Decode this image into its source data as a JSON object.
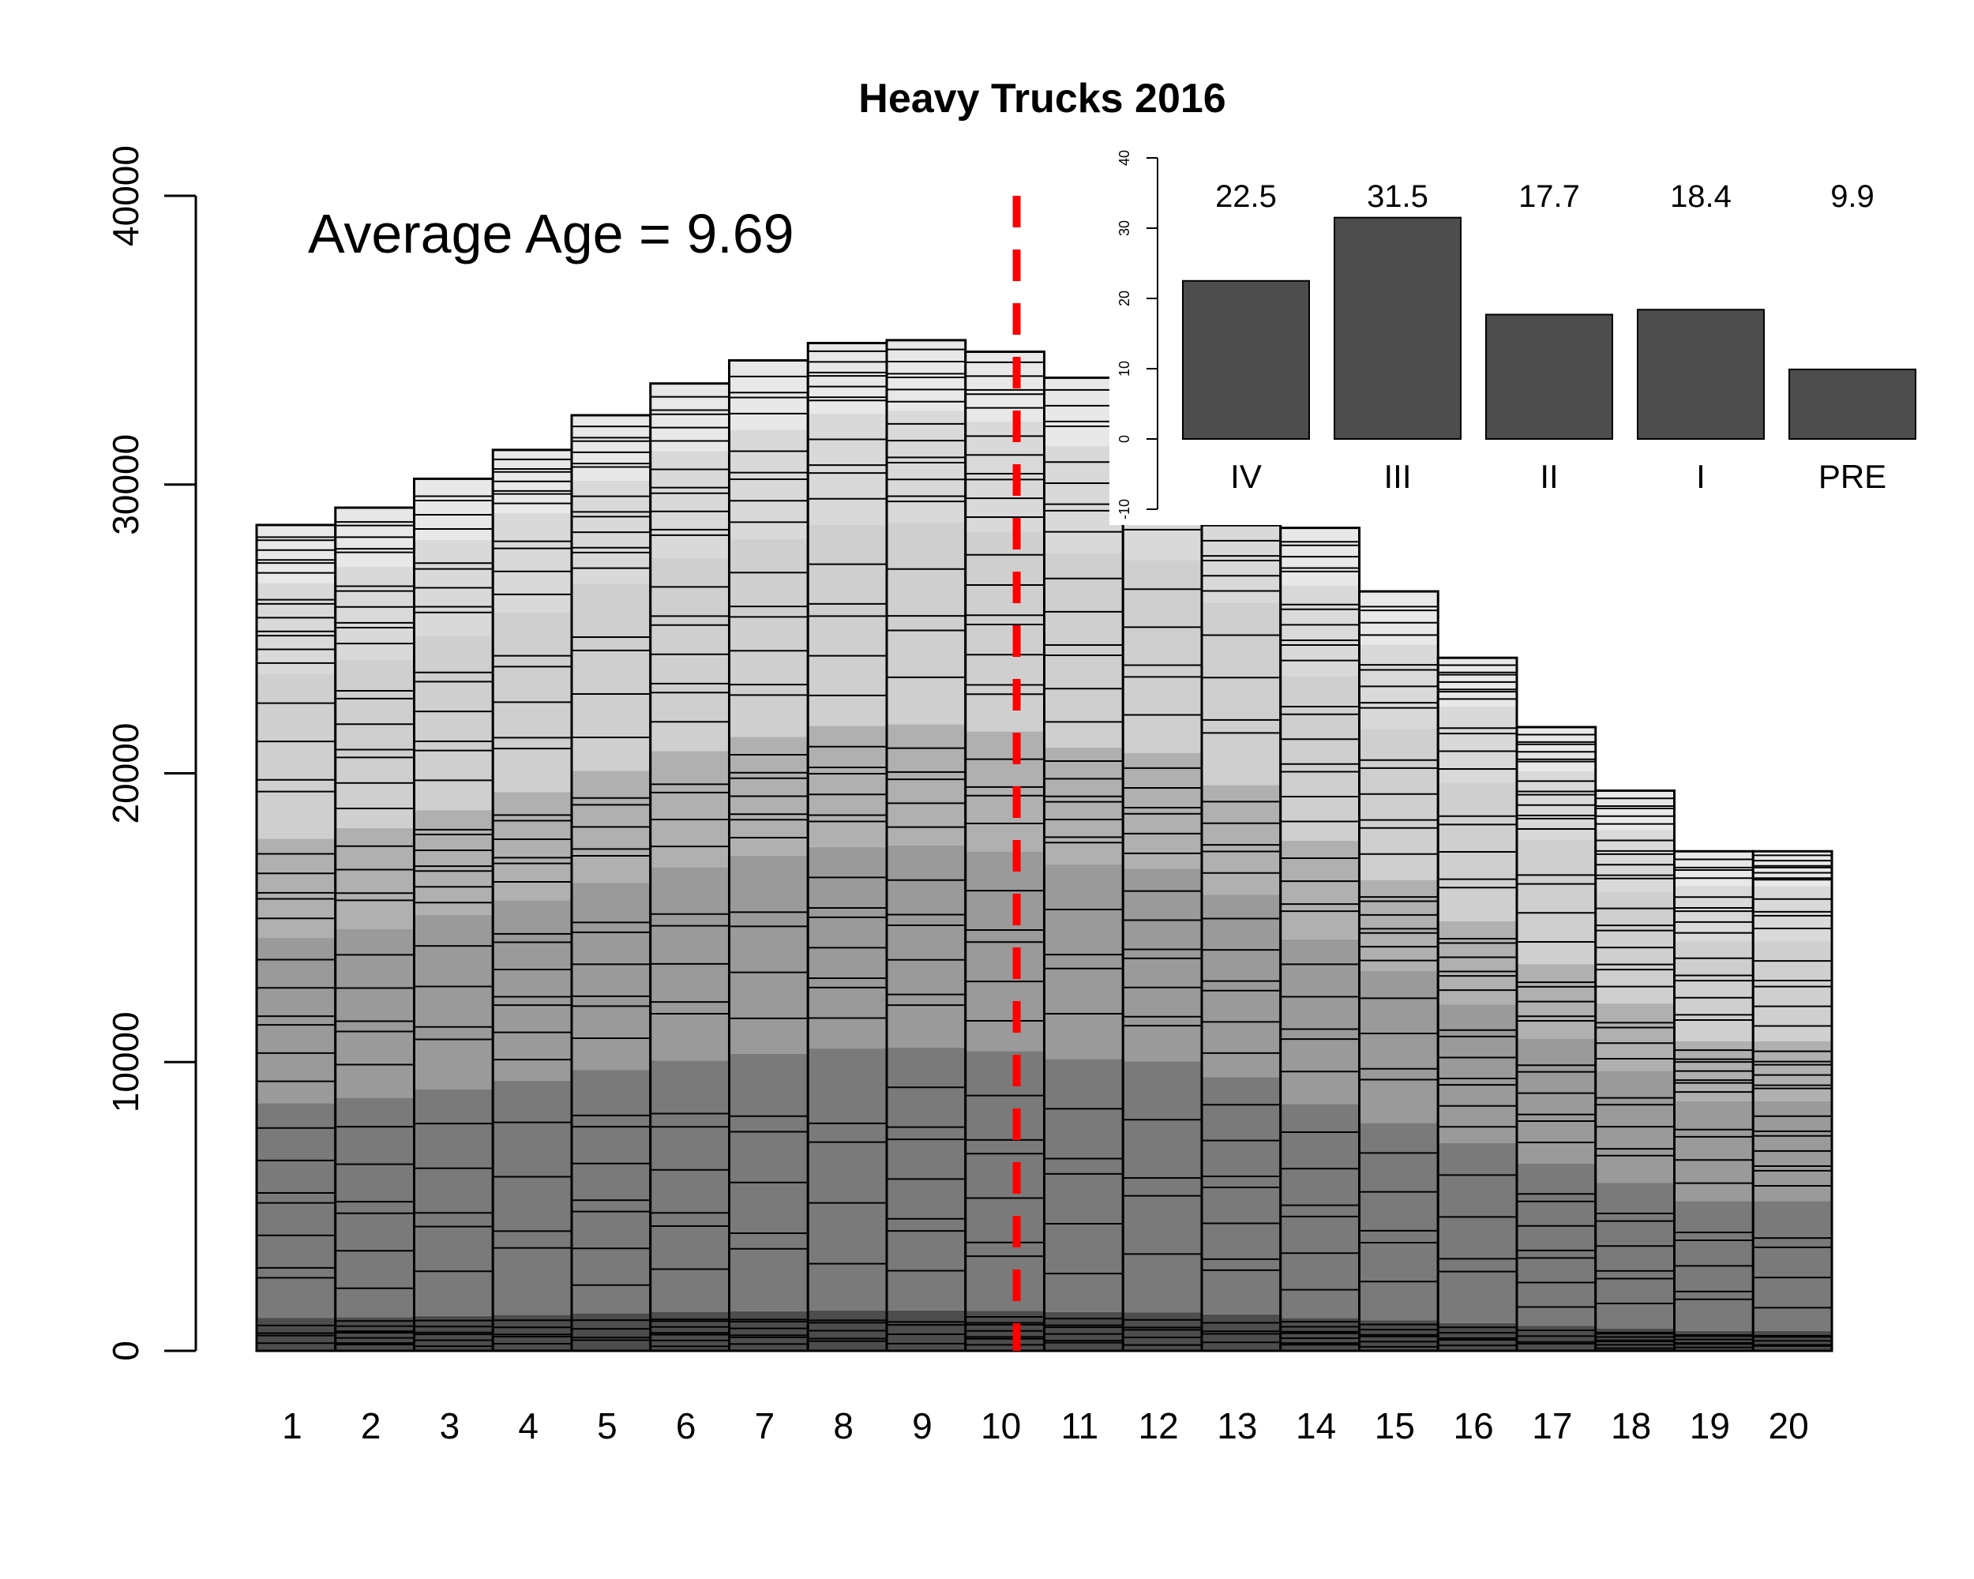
{
  "chart_data": [
    {
      "type": "bar",
      "subtype": "stacked",
      "title": "Heavy Trucks 2016",
      "xlabel": "",
      "ylabel": "",
      "categories": [
        "1",
        "2",
        "3",
        "4",
        "5",
        "6",
        "7",
        "8",
        "9",
        "10",
        "11",
        "12",
        "13",
        "14",
        "15",
        "16",
        "17",
        "18",
        "19",
        "20"
      ],
      "totals": [
        28600,
        29200,
        30200,
        31200,
        32400,
        33500,
        34300,
        34900,
        35000,
        34600,
        33700,
        33400,
        31600,
        28500,
        26300,
        24000,
        21600,
        19400,
        17300,
        17300
      ],
      "ylim": [
        0,
        40000
      ],
      "yticks": [
        "0",
        "10000",
        "20000",
        "30000",
        "40000"
      ],
      "annotation": {
        "text": "Average Age = 9.69",
        "color": "#ff0000"
      },
      "reference_line": {
        "x": 10.15,
        "style": "dashed",
        "color": "#ff0000"
      },
      "segment_shades": [
        "#4d4d4d",
        "#7a7a7a",
        "#9a9a9a",
        "#b0b0b0",
        "#cfcfcf",
        "#d9d9d9",
        "#e8e8e8"
      ],
      "grid": false,
      "legend": "none"
    },
    {
      "type": "bar",
      "categories": [
        "IV",
        "III",
        "II",
        "I",
        "PRE"
      ],
      "values": [
        22.5,
        31.5,
        17.7,
        18.4,
        9.9
      ],
      "value_labels": [
        "22.5",
        "31.5",
        "17.7",
        "18.4",
        "9.9"
      ],
      "ylim": [
        -10,
        40
      ],
      "yticks": [
        "-10",
        "0",
        "10",
        "20",
        "30",
        "40"
      ],
      "bar_color": "#4d4d4d",
      "position": "inset-top-right"
    }
  ]
}
